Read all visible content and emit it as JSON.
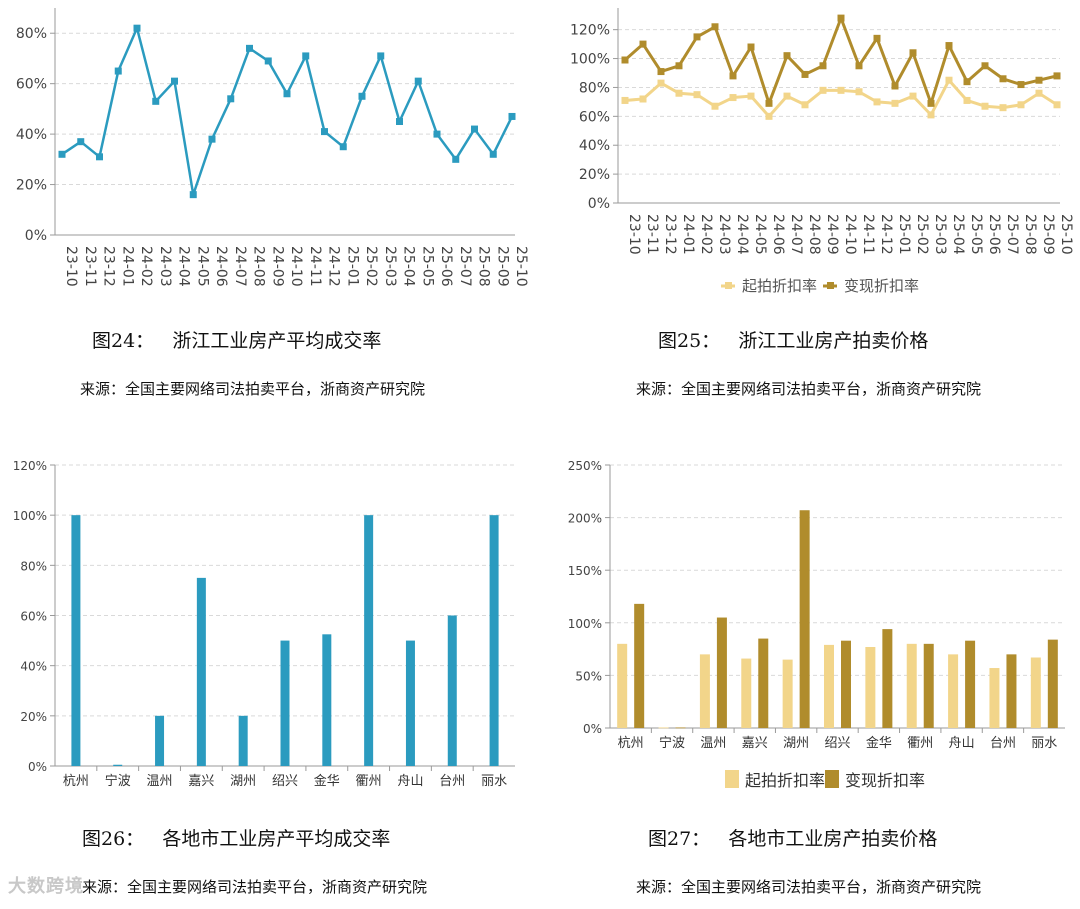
{
  "colors": {
    "teal": "#2b9bbf",
    "gold_light": "#f2d58a",
    "gold_dark": "#b08c2c",
    "grid": "#d9d9d9",
    "axis": "#9a9a9a"
  },
  "captions": {
    "fig24_num": "图24：",
    "fig24_title": "浙江工业房产平均成交率",
    "fig24_source": "来源：全国主要网络司法拍卖平台，浙商资产研究院",
    "fig25_num": "图25：",
    "fig25_title": "浙江工业房产拍卖价格",
    "fig25_source": "来源：全国主要网络司法拍卖平台，浙商资产研究院",
    "fig26_num": "图26：",
    "fig26_title": "各地市工业房产平均成交率",
    "fig26_source": "来源：全国主要网络司法拍卖平台，浙商资产研究院",
    "fig27_num": "图27：",
    "fig27_title": "各地市工业房产拍卖价格",
    "fig27_source": "来源：全国主要网络司法拍卖平台，浙商资产研究院",
    "watermark": "大数跨境"
  },
  "chart_data": [
    {
      "id": "fig24",
      "type": "line",
      "x": [
        "23-10",
        "23-11",
        "23-12",
        "24-01",
        "24-02",
        "24-03",
        "24-04",
        "24-05",
        "24-06",
        "24-07",
        "24-08",
        "24-09",
        "24-10",
        "24-11",
        "24-12",
        "25-01",
        "25-02",
        "25-03",
        "25-04",
        "25-05",
        "25-06",
        "25-07",
        "25-08",
        "25-09",
        "25-10"
      ],
      "series": [
        {
          "values": [
            32,
            37,
            31,
            65,
            82,
            53,
            61,
            16,
            38,
            54,
            74,
            69,
            56,
            71,
            41,
            35,
            55,
            71,
            45,
            61,
            40,
            30,
            42,
            32,
            47
          ]
        }
      ],
      "yticks": [
        "0%",
        "20%",
        "40%",
        "60%",
        "80%"
      ],
      "ylim": [
        0,
        90
      ],
      "grid": true
    },
    {
      "id": "fig25",
      "type": "line",
      "x": [
        "23-10",
        "23-11",
        "23-12",
        "24-01",
        "24-02",
        "24-03",
        "24-04",
        "24-05",
        "24-06",
        "24-07",
        "24-08",
        "24-09",
        "24-10",
        "24-11",
        "24-12",
        "25-01",
        "25-02",
        "25-03",
        "25-04",
        "25-05",
        "25-06",
        "25-07",
        "25-08",
        "25-09",
        "25-10"
      ],
      "series": [
        {
          "name": "起拍折扣率",
          "values": [
            71,
            72,
            83,
            76,
            75,
            67,
            73,
            74,
            60,
            74,
            68,
            78,
            78,
            77,
            70,
            69,
            74,
            61,
            85,
            71,
            67,
            66,
            68,
            76,
            68
          ]
        },
        {
          "name": "变现折扣率",
          "values": [
            99,
            110,
            91,
            95,
            115,
            122,
            88,
            108,
            69,
            102,
            89,
            95,
            128,
            95,
            114,
            81,
            104,
            69,
            109,
            84,
            95,
            86,
            82,
            85,
            88
          ]
        }
      ],
      "yticks": [
        "0%",
        "20%",
        "40%",
        "60%",
        "80%",
        "100%",
        "120%"
      ],
      "ylim": [
        0,
        135
      ],
      "legend": "bottom",
      "grid": true
    },
    {
      "id": "fig26",
      "type": "bar",
      "categories": [
        "杭州",
        "宁波",
        "温州",
        "嘉兴",
        "湖州",
        "绍兴",
        "金华",
        "衢州",
        "舟山",
        "台州",
        "丽水"
      ],
      "series": [
        {
          "values": [
            100,
            0.5,
            20,
            75,
            20,
            50,
            52.5,
            100,
            50,
            60,
            100
          ]
        }
      ],
      "yticks": [
        "0%",
        "20%",
        "40%",
        "60%",
        "80%",
        "100%",
        "120%"
      ],
      "ylim": [
        0,
        120
      ],
      "grid": true
    },
    {
      "id": "fig27",
      "type": "bar",
      "categories": [
        "杭州",
        "宁波",
        "温州",
        "嘉兴",
        "湖州",
        "绍兴",
        "金华",
        "衢州",
        "舟山",
        "台州",
        "丽水"
      ],
      "series": [
        {
          "name": "起拍折扣率",
          "values": [
            80,
            0.5,
            70,
            66,
            65,
            79,
            77,
            80,
            70,
            57,
            67
          ]
        },
        {
          "name": "变现折扣率",
          "values": [
            118,
            0.5,
            105,
            85,
            207,
            83,
            94,
            80,
            83,
            70,
            84
          ]
        }
      ],
      "yticks": [
        "0%",
        "50%",
        "100%",
        "150%",
        "200%",
        "250%"
      ],
      "ylim": [
        0,
        250
      ],
      "legend": "bottom",
      "grid": true
    }
  ]
}
